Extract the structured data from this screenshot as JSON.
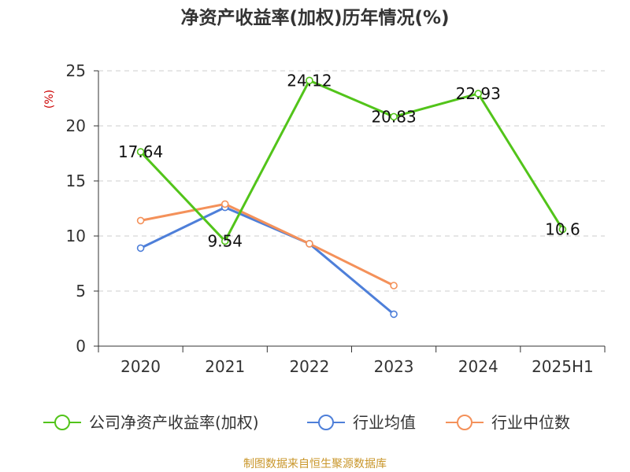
{
  "chart_data": {
    "type": "line",
    "title": "净资产收益率(加权)历年情况(%)",
    "ylabel": "(%)",
    "xlabel": "",
    "categories": [
      "2020",
      "2021",
      "2022",
      "2023",
      "2024",
      "2025H1"
    ],
    "ylim": [
      0,
      25
    ],
    "yticks": [
      0,
      5,
      10,
      15,
      20,
      25
    ],
    "grid": "horizontal dashed",
    "legend_position": "bottom",
    "series": [
      {
        "name": "公司净资产收益率(加权)",
        "color": "#52c41a",
        "values": [
          17.64,
          9.54,
          24.12,
          20.83,
          22.93,
          10.6
        ],
        "show_labels": true
      },
      {
        "name": "行业均值",
        "color": "#4e7fd9",
        "values": [
          8.9,
          12.6,
          9.3,
          2.9,
          null,
          null
        ],
        "show_labels": false
      },
      {
        "name": "行业中位数",
        "color": "#f4915a",
        "values": [
          11.4,
          12.9,
          9.3,
          5.5,
          null,
          null
        ],
        "show_labels": false
      }
    ],
    "data_labels": [
      "17.64",
      "9.54",
      "24.12",
      "20.83",
      "22.93",
      "10.6"
    ]
  },
  "source_text": "制图数据来自恒生聚源数据库",
  "colors": {
    "ylabel": "#cc0000",
    "source": "#c9962a",
    "axis": "#333333",
    "grid": "#cccccc"
  }
}
